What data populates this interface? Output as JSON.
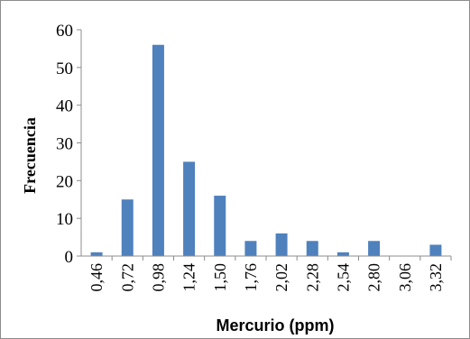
{
  "chart_data": {
    "type": "bar",
    "title": "",
    "xlabel": "Mercurio (ppm)",
    "ylabel": "Frecuencia",
    "categories": [
      "0,46",
      "0,72",
      "0,98",
      "1,24",
      "1,50",
      "1,76",
      "2,02",
      "2,28",
      "2,54",
      "2,80",
      "3,06",
      "3,32"
    ],
    "values": [
      1,
      15,
      56,
      25,
      16,
      4,
      6,
      4,
      1,
      4,
      0,
      3
    ],
    "ylim": [
      0,
      60
    ],
    "yticks": [
      "0",
      "10",
      "20",
      "30",
      "40",
      "50",
      "60"
    ],
    "grid": false,
    "legend": "none",
    "bar_color": "#4f81bd"
  }
}
